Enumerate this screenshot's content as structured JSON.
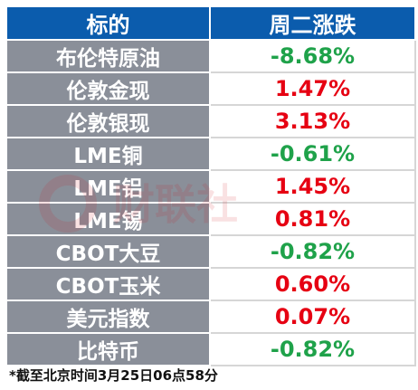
{
  "header": {
    "col1": "标的",
    "col2": "周二涨跌"
  },
  "rows": [
    {
      "name": "布伦特原油",
      "change": "-8.68%",
      "direction": "down"
    },
    {
      "name": "伦敦金现",
      "change": "1.47%",
      "direction": "up"
    },
    {
      "name": "伦敦银现",
      "change": "3.13%",
      "direction": "up"
    },
    {
      "name": "LME铜",
      "change": "-0.61%",
      "direction": "down"
    },
    {
      "name": "LME铝",
      "change": "1.45%",
      "direction": "up"
    },
    {
      "name": "LME锡",
      "change": "0.81%",
      "direction": "up"
    },
    {
      "name": "CBOT大豆",
      "change": "-0.82%",
      "direction": "down"
    },
    {
      "name": "CBOT玉米",
      "change": "0.60%",
      "direction": "up"
    },
    {
      "name": "美元指数",
      "change": "0.07%",
      "direction": "up"
    },
    {
      "name": "比特币",
      "change": "-0.82%",
      "direction": "down"
    }
  ],
  "footnote": "*截至北京时间3月25日06点58分",
  "watermark": {
    "text": "财联社"
  },
  "colors": {
    "header_bg": "#0b5cad",
    "name_bg": "#8a8f99",
    "up": "#e60012",
    "down": "#1fa24a"
  }
}
